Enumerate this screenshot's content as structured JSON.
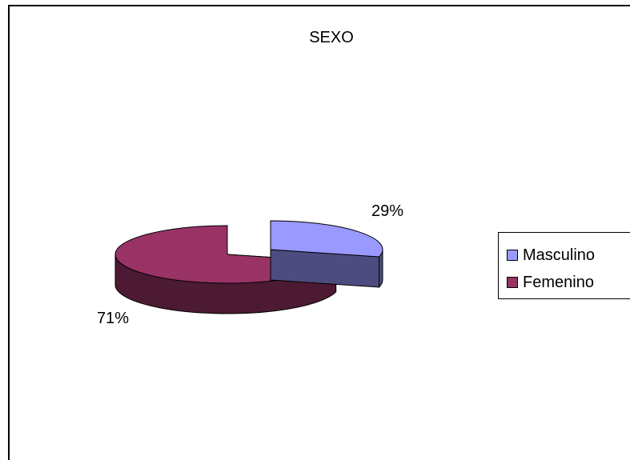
{
  "chart_data": {
    "type": "pie",
    "title": "SEXO",
    "slices": [
      {
        "label": "Masculino",
        "value": 29,
        "value_label": "29%",
        "color": "#9999ff",
        "side_color": "#4c4c80"
      },
      {
        "label": "Femenino",
        "value": 71,
        "value_label": "71%",
        "color": "#993366",
        "side_color": "#4d1a33"
      }
    ],
    "legend_position": "right",
    "style": "3d-exploded"
  }
}
